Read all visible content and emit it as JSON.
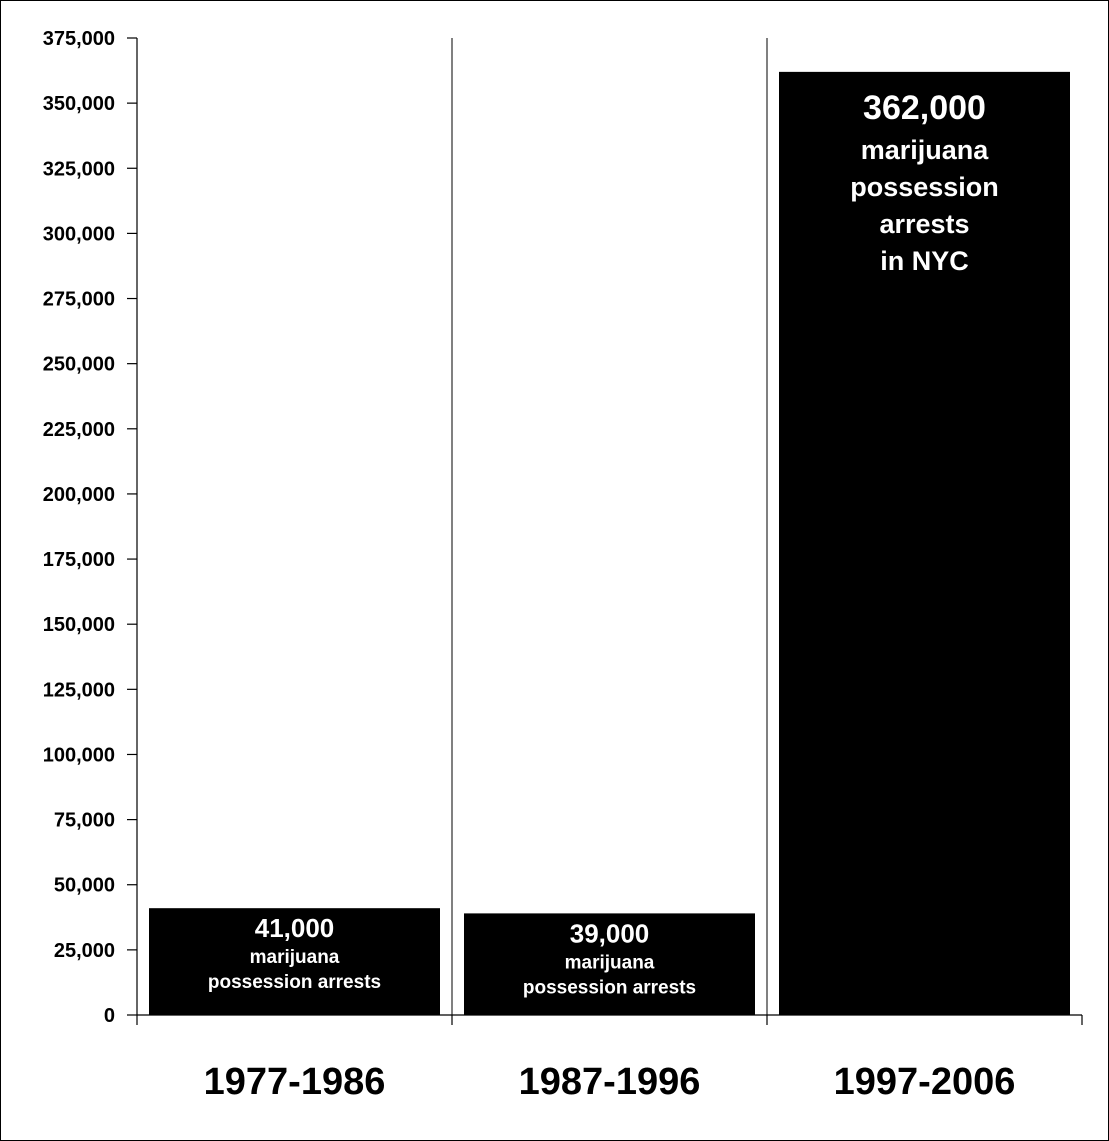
{
  "chart_data": {
    "type": "bar",
    "categories": [
      "1977-1986",
      "1987-1996",
      "1997-2006"
    ],
    "values": [
      41000,
      39000,
      362000
    ],
    "ylim": [
      0,
      375000
    ],
    "y_ticks": [
      0,
      25000,
      50000,
      75000,
      100000,
      125000,
      150000,
      175000,
      200000,
      225000,
      250000,
      275000,
      300000,
      325000,
      350000,
      375000
    ],
    "y_tick_labels": [
      "0",
      "25,000",
      "50,000",
      "75,000",
      "100,000",
      "125,000",
      "150,000",
      "175,000",
      "200,000",
      "225,000",
      "250,000",
      "275,000",
      "300,000",
      "325,000",
      "350,000",
      "375,000"
    ],
    "bar_color": "#000000",
    "label_color": "#ffffff",
    "grid": false,
    "category_separators": true,
    "annotations": [
      {
        "value_text": "41,000",
        "lines": [
          "marijuana",
          "possession arrests"
        ]
      },
      {
        "value_text": "39,000",
        "lines": [
          "marijuana",
          "possession arrests"
        ]
      },
      {
        "value_text": "362,000",
        "lines": [
          "marijuana",
          "possession",
          "arrests",
          "in NYC"
        ]
      }
    ]
  }
}
